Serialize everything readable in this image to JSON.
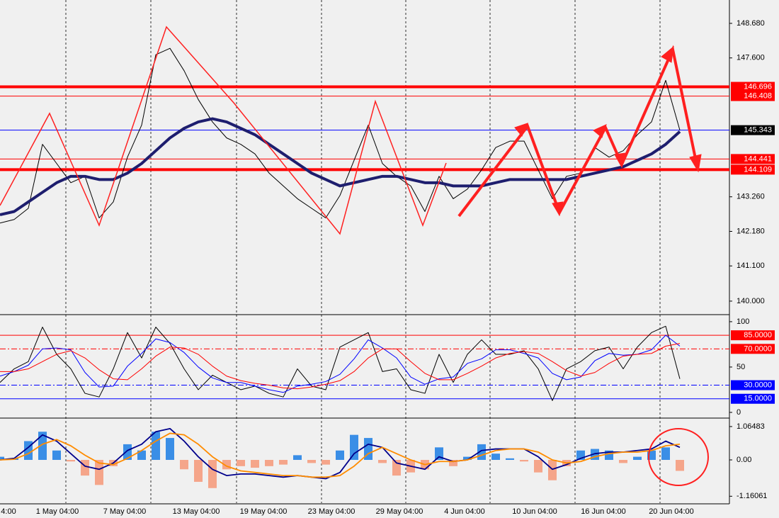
{
  "chart_data": [
    {
      "type": "line",
      "xlim": [
        0,
        51.5
      ],
      "ylim": [
        139.6,
        149.41
      ],
      "yticks": [
        {
          "value": 148.68,
          "label": "148.680"
        },
        {
          "value": 147.6,
          "label": "147.600"
        },
        {
          "value": 143.26,
          "label": "143.260"
        },
        {
          "value": 142.18,
          "label": "142.180"
        },
        {
          "value": 141.1,
          "label": "141.100"
        },
        {
          "value": 140,
          "label": "140.000"
        }
      ],
      "levels": [
        {
          "value": 146.696,
          "color": "#ff0000",
          "style": "thick"
        },
        {
          "value": 146.408,
          "color": "#ff0000",
          "style": "thin"
        },
        {
          "value": 145.343,
          "color": "#0000ff",
          "style": "thin",
          "label_color": "#000000"
        },
        {
          "value": 144.441,
          "color": "#ff0000",
          "style": "thin"
        },
        {
          "value": 144.109,
          "color": "#ff0000",
          "style": "thick"
        }
      ],
      "series": [
        {
          "color": "#000000",
          "style": "thin",
          "values": [
            142.44,
            142.55,
            142.9,
            144.9,
            144.3,
            143.7,
            143.9,
            142.6,
            143.1,
            144.5,
            145.5,
            147.7,
            147.9,
            147.2,
            146.3,
            145.6,
            145.1,
            144.9,
            144.6,
            144.0,
            143.6,
            143.2,
            142.9,
            142.6,
            143.3,
            144.4,
            145.5,
            144.3,
            143.9,
            143.6,
            142.8,
            143.9,
            143.2,
            143.5,
            144.1,
            144.8,
            145.0,
            145.0,
            144.1,
            143.2,
            143.9,
            144.0,
            144.8,
            144.5,
            144.7,
            145.2,
            145.6,
            146.9,
            145.34
          ]
        },
        {
          "color": "#1e1e6e",
          "style": "thick",
          "values": [
            142.7,
            142.8,
            143.1,
            143.4,
            143.7,
            143.9,
            143.9,
            143.8,
            143.8,
            144.0,
            144.3,
            144.7,
            145.1,
            145.4,
            145.6,
            145.7,
            145.6,
            145.4,
            145.2,
            144.9,
            144.6,
            144.3,
            144.0,
            143.8,
            143.6,
            143.7,
            143.8,
            143.9,
            143.9,
            143.8,
            143.7,
            143.7,
            143.6,
            143.6,
            143.6,
            143.7,
            143.8,
            143.8,
            143.8,
            143.8,
            143.8,
            143.9,
            144.0,
            144.1,
            144.2,
            144.4,
            144.6,
            144.9,
            145.3
          ]
        }
      ]
    },
    {
      "type": "line",
      "xlim": [
        0,
        51.5
      ],
      "ylim": [
        -5.5,
        106.2
      ],
      "yticks": [
        100,
        50,
        0
      ],
      "levels": [
        {
          "value": 85,
          "label": "85.0000",
          "color": "#ff0000",
          "style": "solid"
        },
        {
          "value": 70,
          "label": "70.0000",
          "color": "#ff0000",
          "style": "dashdot"
        },
        {
          "value": 30,
          "label": "30.0000",
          "color": "#0000ff",
          "style": "dashdot"
        },
        {
          "value": 15,
          "label": "15.0000",
          "color": "#0000ff",
          "style": "solid"
        }
      ],
      "series": [
        {
          "color": "#000000",
          "style": "thin",
          "values": [
            33,
            48,
            56,
            94,
            64,
            48,
            21,
            17,
            48,
            88,
            60,
            94,
            76,
            48,
            25,
            41,
            33,
            25,
            29,
            21,
            17,
            48,
            29,
            25,
            72,
            80,
            88,
            45,
            48,
            25,
            21,
            64,
            33,
            64,
            80,
            64,
            64,
            68,
            48,
            13,
            48,
            56,
            68,
            72,
            48,
            72,
            88,
            95,
            37
          ]
        },
        {
          "color": "#0000ff",
          "style": "thin",
          "values": [
            40,
            45,
            52,
            70,
            71,
            69,
            44,
            28,
            29,
            51,
            65,
            81,
            77,
            66,
            50,
            38,
            33,
            33,
            29,
            25,
            22,
            29,
            31,
            34,
            42,
            59,
            80,
            71,
            60,
            39,
            31,
            37,
            39,
            54,
            59,
            69,
            69,
            65,
            60,
            43,
            36,
            39,
            57,
            65,
            63,
            64,
            69,
            85,
            73
          ]
        },
        {
          "color": "#ff0000",
          "style": "thin",
          "values": [
            45,
            45,
            48,
            56,
            64,
            68,
            60,
            47,
            37,
            36,
            48,
            62,
            72,
            71,
            64,
            51,
            40,
            35,
            32,
            30,
            27,
            26,
            28,
            31,
            35,
            45,
            60,
            70,
            70,
            56,
            43,
            36,
            36,
            43,
            51,
            60,
            65,
            67,
            65,
            56,
            46,
            40,
            44,
            54,
            62,
            64,
            65,
            73,
            76
          ]
        }
      ]
    },
    {
      "type": "bar",
      "xlim": [
        0,
        51.5
      ],
      "ylim": [
        -1.38,
        1.29
      ],
      "yticks": [
        1.06483,
        {
          "value": 0,
          "label": "0.00"
        },
        -1.16061
      ],
      "xgrid": [
        4.65,
        10.65,
        16.7,
        22.7,
        28.65,
        34.6,
        40.6,
        46.6
      ],
      "xticks": [
        {
          "value": 0.6,
          "label": "4:00"
        },
        {
          "value": 4.05,
          "label": "1 May 04:00"
        },
        {
          "value": 8.8,
          "label": "7 May 04:00"
        },
        {
          "value": 13.85,
          "label": "13 May 04:00"
        },
        {
          "value": 18.6,
          "label": "19 May 04:00"
        },
        {
          "value": 23.4,
          "label": "23 May 04:00"
        },
        {
          "value": 28.2,
          "label": "29 May 04:00"
        },
        {
          "value": 32.8,
          "label": "4 Jun 04:00"
        },
        {
          "value": 37.75,
          "label": "10 Jun 04:00"
        },
        {
          "value": 42.6,
          "label": "16 Jun 04:00"
        },
        {
          "value": 47.4,
          "label": "20 Jun 04:00"
        }
      ],
      "series": [
        {
          "type": "bar",
          "color": "#3a8ee6",
          "negative_color": "#f5a58a",
          "values": [
            0.1,
            0.05,
            0.6,
            0.9,
            0.3,
            -0.05,
            -0.5,
            -0.8,
            -0.2,
            0.5,
            0.3,
            0.9,
            0.7,
            -0.3,
            -0.7,
            -0.9,
            -0.3,
            -0.2,
            -0.25,
            -0.2,
            -0.15,
            0.15,
            -0.1,
            -0.15,
            0.3,
            0.8,
            0.7,
            -0.1,
            -0.5,
            -0.4,
            -0.3,
            0.4,
            -0.2,
            0.1,
            0.5,
            0.2,
            0.05,
            -0.05,
            -0.4,
            -0.65,
            -0.2,
            0.3,
            0.35,
            0.3,
            -0.1,
            0.1,
            0.3,
            0.4,
            -0.35
          ]
        },
        {
          "type": "line",
          "color": "#00008b",
          "style": "medium",
          "values": [
            0,
            0.05,
            0.4,
            0.8,
            0.6,
            0.2,
            -0.2,
            -0.3,
            -0.1,
            0.3,
            0.5,
            0.9,
            1.0,
            0.6,
            0.1,
            -0.3,
            -0.5,
            -0.45,
            -0.45,
            -0.5,
            -0.55,
            -0.5,
            -0.55,
            -0.6,
            -0.4,
            0.2,
            0.5,
            0.4,
            -0.1,
            -0.2,
            -0.3,
            0.1,
            -0.05,
            0,
            0.3,
            0.35,
            0.35,
            0.35,
            0.1,
            -0.3,
            -0.15,
            0.05,
            0.2,
            0.25,
            0.25,
            0.3,
            0.35,
            0.6,
            0.4
          ]
        },
        {
          "type": "line",
          "color": "#ff8c00",
          "style": "medium",
          "values": [
            0,
            0.02,
            0.2,
            0.5,
            0.65,
            0.45,
            0.15,
            -0.1,
            -0.15,
            0.05,
            0.3,
            0.6,
            0.85,
            0.8,
            0.5,
            0.1,
            -0.2,
            -0.35,
            -0.4,
            -0.45,
            -0.5,
            -0.5,
            -0.55,
            -0.55,
            -0.5,
            -0.2,
            0.2,
            0.4,
            0.2,
            0,
            -0.15,
            -0.05,
            -0.05,
            0,
            0.15,
            0.3,
            0.35,
            0.35,
            0.25,
            0,
            -0.1,
            -0.05,
            0.1,
            0.2,
            0.25,
            0.25,
            0.3,
            0.45,
            0.5
          ]
        }
      ]
    }
  ]
}
